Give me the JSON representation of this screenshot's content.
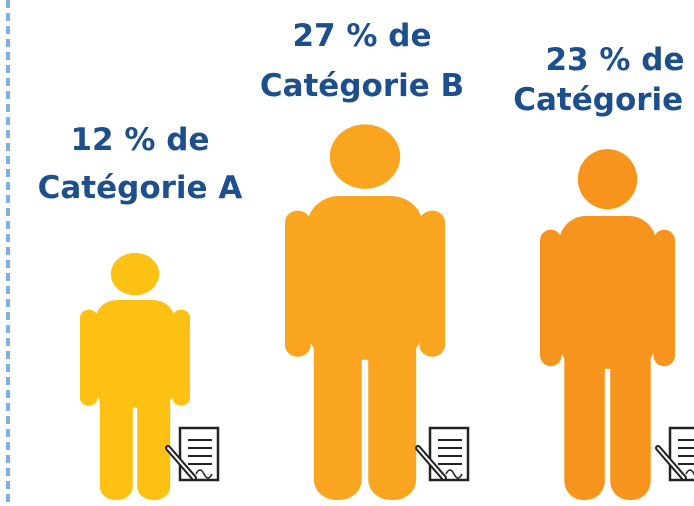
{
  "figures": [
    {
      "line1": "12 % de",
      "line2": "Catégorie A"
    },
    {
      "line1": "27 % de",
      "line2": "Catégorie B"
    },
    {
      "line1": "23 % de",
      "line2": "Catégorie C"
    }
  ]
}
